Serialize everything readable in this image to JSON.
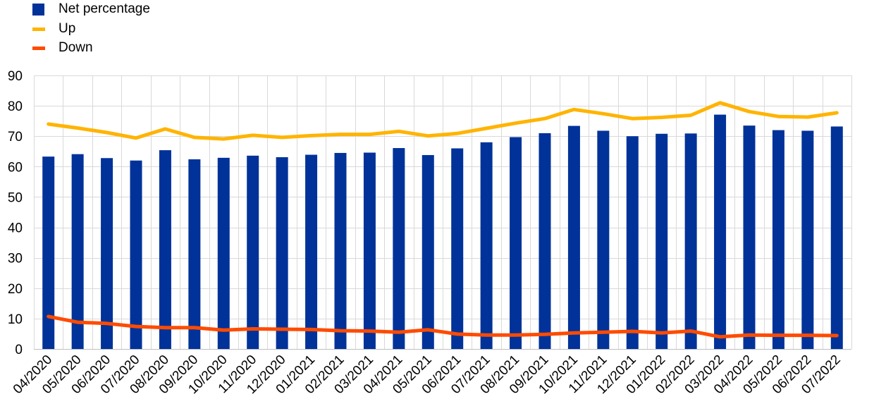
{
  "chart_data": {
    "type": "bar",
    "title": "",
    "xlabel": "",
    "ylabel": "",
    "ylim": [
      0,
      90
    ],
    "yticks": [
      0,
      10,
      20,
      30,
      40,
      50,
      60,
      70,
      80,
      90
    ],
    "grid": true,
    "legend_position": "top-left",
    "categories": [
      "04/2020",
      "05/2020",
      "06/2020",
      "07/2020",
      "08/2020",
      "09/2020",
      "10/2020",
      "11/2020",
      "12/2020",
      "01/2021",
      "02/2021",
      "03/2021",
      "04/2021",
      "05/2021",
      "06/2021",
      "07/2021",
      "08/2021",
      "09/2021",
      "10/2021",
      "11/2021",
      "12/2021",
      "01/2022",
      "02/2022",
      "03/2022",
      "04/2022",
      "05/2022",
      "06/2022",
      "07/2022"
    ],
    "series": [
      {
        "name": "Net percentage",
        "kind": "bar",
        "color": "#003299",
        "values": [
          63.3,
          64.1,
          62.8,
          62.0,
          65.4,
          62.4,
          62.9,
          63.6,
          63.1,
          63.9,
          64.5,
          64.6,
          66.1,
          63.8,
          66.0,
          68.0,
          69.7,
          71.0,
          73.4,
          71.8,
          70.0,
          70.8,
          70.9,
          77.1,
          73.5,
          72.0,
          71.8,
          73.2
        ]
      },
      {
        "name": "Up",
        "kind": "line",
        "color": "#FFB400",
        "values": [
          74.0,
          72.7,
          71.2,
          69.4,
          72.4,
          69.6,
          69.1,
          70.3,
          69.6,
          70.2,
          70.6,
          70.6,
          71.6,
          70.1,
          70.9,
          72.6,
          74.3,
          75.8,
          78.8,
          77.4,
          75.8,
          76.2,
          76.9,
          81.0,
          78.1,
          76.5,
          76.3,
          77.7
        ]
      },
      {
        "name": "Down",
        "kind": "line",
        "color": "#FF4B00",
        "values": [
          10.7,
          8.8,
          8.4,
          7.4,
          7.0,
          7.0,
          6.2,
          6.6,
          6.5,
          6.4,
          6.0,
          5.9,
          5.5,
          6.3,
          4.9,
          4.6,
          4.6,
          4.8,
          5.3,
          5.5,
          5.8,
          5.3,
          5.9,
          4.0,
          4.6,
          4.5,
          4.5,
          4.4
        ]
      }
    ]
  }
}
